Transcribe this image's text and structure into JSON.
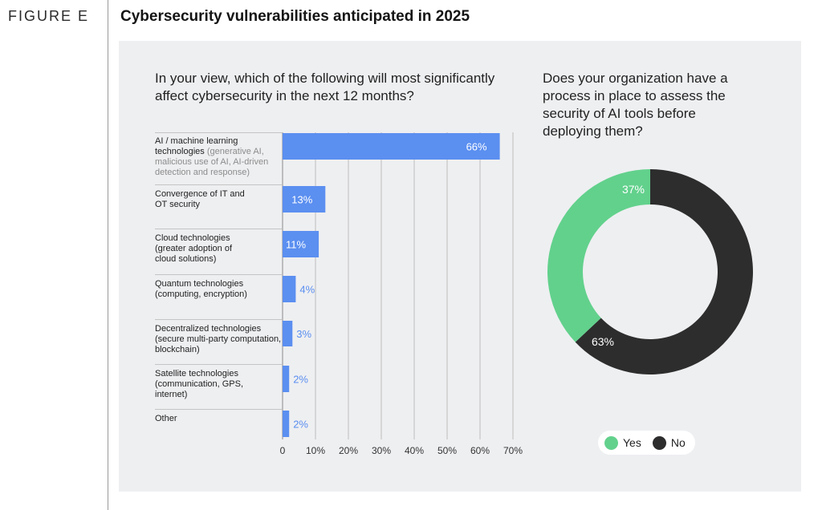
{
  "figure_label": "FIGURE E",
  "title": "Cybersecurity vulnerabilities anticipated in 2025",
  "colors": {
    "bar": "#5b8ff0",
    "yes": "#62d18c",
    "no": "#2d2d2d",
    "panel": "#eeeff1"
  },
  "chart_data": [
    {
      "type": "bar",
      "orientation": "horizontal",
      "title": "In your view, which of the following will most significantly affect cybersecurity in the next 12 months?",
      "categories": [
        {
          "label": "AI / machine learning technologies",
          "sub": "(generative AI, malicious use of AI, AI-driven detection and response)"
        },
        {
          "label": "Convergence of IT and OT security",
          "sub": ""
        },
        {
          "label": "Cloud technologies (greater adoption of cloud solutions)",
          "sub": ""
        },
        {
          "label": "Quantum technologies (computing, encryption)",
          "sub": ""
        },
        {
          "label": "Decentralized technologies (secure multi-party computation, blockchain)",
          "sub": ""
        },
        {
          "label": "Satellite technologies (communication, GPS, internet)",
          "sub": ""
        },
        {
          "label": "Other",
          "sub": ""
        }
      ],
      "values": [
        66,
        13,
        11,
        4,
        3,
        2,
        2
      ],
      "value_labels": [
        "66%",
        "13%",
        "11%",
        "4%",
        "3%",
        "2%",
        "2%"
      ],
      "xlim": [
        0,
        70
      ],
      "ticks": [
        0,
        10,
        20,
        30,
        40,
        50,
        60,
        70
      ],
      "tick_labels": [
        "0",
        "10%",
        "20%",
        "30%",
        "40%",
        "50%",
        "60%",
        "70%"
      ],
      "grid": true
    },
    {
      "type": "pie",
      "style": "donut",
      "title": "Does your organization have a process in place to assess the security of AI tools before deploying them?",
      "categories": [
        "Yes",
        "No"
      ],
      "values": [
        37,
        63
      ],
      "value_labels": [
        "37%",
        "63%"
      ],
      "legend": "bottom"
    }
  ]
}
